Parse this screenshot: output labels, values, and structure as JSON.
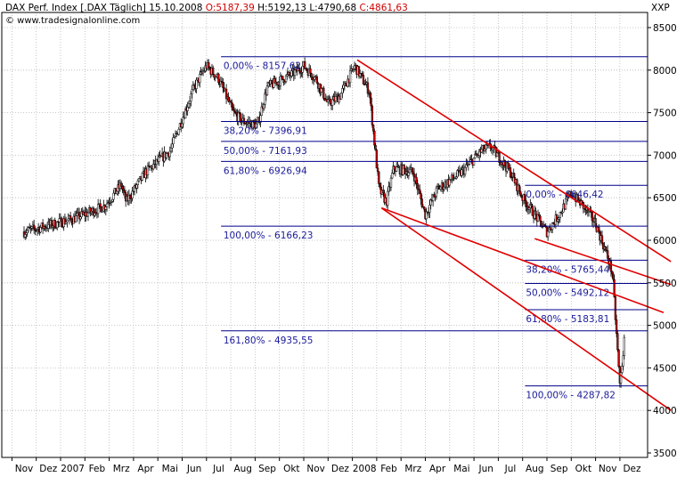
{
  "header": {
    "instrument": "DAX Perf. Index [.DAX  Täglich]",
    "date": "15.10.2008",
    "open": "O:5187,39",
    "high": "H:5192,13",
    "low": "L:4790,68",
    "close": "C:4861,63",
    "source": "© www.tradesignalonline.com",
    "symbol": "XXP"
  },
  "colors": {
    "background": "#ffffff",
    "grid": "#b8b8b8",
    "fib_line": "#00008b",
    "fib_text": "#1a1a9a",
    "trend": "#e00000",
    "candle_up": "#ffffff",
    "candle_down": "#cc0000",
    "wick": "#000000"
  },
  "chart_data": {
    "type": "candlestick",
    "title": "DAX Perf. Index [.DAX  Täglich]",
    "ylim": [
      3500,
      8600
    ],
    "y_ticks": [
      3500,
      4000,
      4500,
      5000,
      5500,
      6000,
      6500,
      7000,
      7500,
      8000,
      8500
    ],
    "x_tick_labels": [
      "Nov",
      "Dez",
      "2007",
      "Feb",
      "Mrz",
      "Apr",
      "Mai",
      "Jun",
      "Jul",
      "Aug",
      "Sep",
      "Okt",
      "Nov",
      "Dez",
      "2008",
      "Feb",
      "Mrz",
      "Apr",
      "Mai",
      "Jun",
      "Jul",
      "Aug",
      "Sep",
      "Okt",
      "Nov",
      "Dez"
    ],
    "price_path": [
      [
        0,
        6100
      ],
      [
        2,
        6250
      ],
      [
        3.3,
        6400
      ],
      [
        4,
        6650
      ],
      [
        4.2,
        6450
      ],
      [
        5,
        6800
      ],
      [
        6,
        7050
      ],
      [
        7,
        7800
      ],
      [
        7.5,
        8050
      ],
      [
        8,
        7900
      ],
      [
        8.6,
        7500
      ],
      [
        9,
        7400
      ],
      [
        9.6,
        7350
      ],
      [
        10,
        7800
      ],
      [
        11,
        7950
      ],
      [
        11.5,
        8050
      ],
      [
        12,
        7900
      ],
      [
        12.5,
        7600
      ],
      [
        13,
        7700
      ],
      [
        13.6,
        8050
      ],
      [
        14.2,
        7750
      ],
      [
        14.6,
        6600
      ],
      [
        14.9,
        6450
      ],
      [
        15.2,
        6850
      ],
      [
        16,
        6800
      ],
      [
        16.5,
        6300
      ],
      [
        17,
        6600
      ],
      [
        18,
        6800
      ],
      [
        18.8,
        7050
      ],
      [
        19.2,
        7100
      ],
      [
        20,
        6800
      ],
      [
        20.5,
        6500
      ],
      [
        21,
        6300
      ],
      [
        21.5,
        6100
      ],
      [
        22,
        6300
      ],
      [
        22.5,
        6550
      ],
      [
        23,
        6400
      ],
      [
        23.5,
        6200
      ],
      [
        24,
        5800
      ],
      [
        24.2,
        5600
      ],
      [
        24.5,
        4300
      ],
      [
        24.7,
        4860
      ]
    ],
    "fibonacci_upper": [
      {
        "label": "0,00% - 8157,62",
        "value": 8157.62
      },
      {
        "label": "38,20% - 7396,91",
        "value": 7396.91
      },
      {
        "label": "50,00% - 7161,93",
        "value": 7161.93
      },
      {
        "label": "61,80% - 6926,94",
        "value": 6926.94
      },
      {
        "label": "100,00% - 6166,23",
        "value": 6166.23
      },
      {
        "label": "161,80% - 4935,55",
        "value": 4935.55
      }
    ],
    "fibonacci_lower": [
      {
        "label": "0,00% - 6646,42",
        "value": 6646.42
      },
      {
        "label": "38,20% - 5765,44",
        "value": 5765.44
      },
      {
        "label": "50,00% - 5492,12",
        "value": 5492.12
      },
      {
        "label": "61,80% - 5183,81",
        "value": 5183.81
      },
      {
        "label": "100,00% - 4287,82",
        "value": 4287.82
      }
    ],
    "trendlines": [
      {
        "name": "upper-channel",
        "from": [
          13.7,
          8120
        ],
        "to": [
          26.6,
          5750
        ]
      },
      {
        "name": "lower-channel",
        "from": [
          14.7,
          6380
        ],
        "to": [
          26.6,
          4000
        ]
      },
      {
        "name": "mid-channel",
        "from": [
          14.7,
          6380
        ],
        "to": [
          26.3,
          5150
        ]
      },
      {
        "name": "sep-line",
        "from": [
          21.0,
          6020
        ],
        "to": [
          26.6,
          5480
        ]
      }
    ]
  }
}
